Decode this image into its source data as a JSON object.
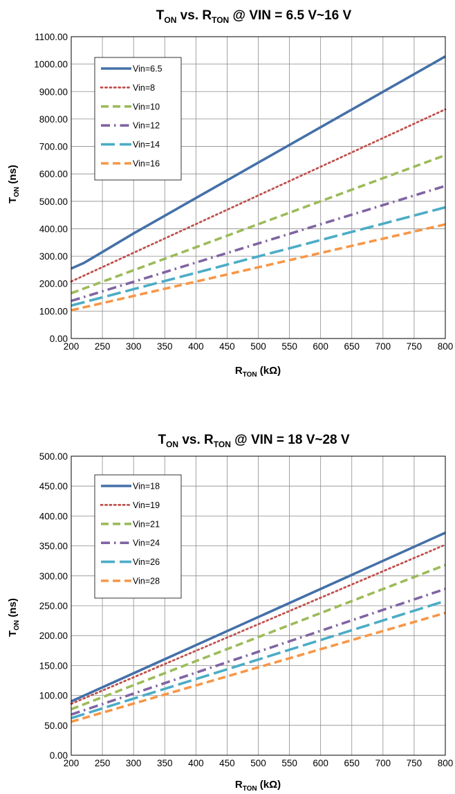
{
  "chart_data": [
    {
      "type": "line",
      "title": {
        "main_t": "T",
        "sub_t": "ON",
        "mid": " vs. R",
        "sub_r": "TON",
        "tail": " @ VIN = 6.5 V~16 V"
      },
      "xlabel": {
        "main": "R",
        "sub": "TON",
        "tail": " (kΩ)"
      },
      "ylabel": {
        "main": "T",
        "sub": "ON",
        "tail": " (ns)"
      },
      "xlim": [
        200,
        800
      ],
      "ylim": [
        0,
        1100
      ],
      "xticks": [
        200,
        250,
        300,
        350,
        400,
        450,
        500,
        550,
        600,
        650,
        700,
        750,
        800
      ],
      "xtick_labels": [
        "200",
        "250",
        "300",
        "350",
        "400",
        "450",
        "500",
        "550",
        "600",
        "650",
        "700",
        "750",
        "800"
      ],
      "yticks": [
        0,
        100,
        200,
        300,
        400,
        500,
        600,
        700,
        800,
        900,
        1000,
        1100
      ],
      "ytick_labels": [
        "0.00",
        "100.00",
        "200.00",
        "300.00",
        "400.00",
        "500.00",
        "600.00",
        "700.00",
        "800.00",
        "900.00",
        "1000.00",
        "1100.00"
      ],
      "grid": true,
      "legend_position": "top-left",
      "series": [
        {
          "name": "Vin=6.5",
          "color": "#4470a8",
          "dash": "solid",
          "x": [
            200,
            220,
            250,
            300,
            800
          ],
          "y": [
            255,
            275,
            315,
            383,
            1028
          ]
        },
        {
          "name": "Vin=8",
          "color": "#c0504d",
          "dash": "dot",
          "x": [
            200,
            800
          ],
          "y": [
            208,
            835
          ]
        },
        {
          "name": "Vin=10",
          "color": "#9bbb59",
          "dash": "dash",
          "x": [
            200,
            800
          ],
          "y": [
            165,
            668
          ]
        },
        {
          "name": "Vin=12",
          "color": "#8064a2",
          "dash": "dashdot",
          "x": [
            200,
            800
          ],
          "y": [
            137,
            556
          ]
        },
        {
          "name": "Vin=14",
          "color": "#4bacc6",
          "dash": "longdash",
          "x": [
            200,
            800
          ],
          "y": [
            120,
            478
          ]
        },
        {
          "name": "Vin=16",
          "color": "#f79646",
          "dash": "dash",
          "x": [
            200,
            800
          ],
          "y": [
            103,
            416
          ]
        }
      ]
    },
    {
      "type": "line",
      "title": {
        "main_t": "T",
        "sub_t": "ON",
        "mid": " vs. R",
        "sub_r": "TON",
        "tail": " @ VIN = 18 V~28 V"
      },
      "xlabel": {
        "main": "R",
        "sub": "TON",
        "tail": " (kΩ)"
      },
      "ylabel": {
        "main": "T",
        "sub": "ON",
        "tail": " (ns)"
      },
      "xlim": [
        200,
        800
      ],
      "ylim": [
        0,
        500
      ],
      "xticks": [
        200,
        250,
        300,
        350,
        400,
        450,
        500,
        550,
        600,
        650,
        700,
        750,
        800
      ],
      "xtick_labels": [
        "200",
        "250",
        "300",
        "350",
        "400",
        "450",
        "500",
        "550",
        "600",
        "650",
        "700",
        "750",
        "800"
      ],
      "yticks": [
        0,
        50,
        100,
        150,
        200,
        250,
        300,
        350,
        400,
        450,
        500
      ],
      "ytick_labels": [
        "0.00",
        "50.00",
        "100.00",
        "150.00",
        "200.00",
        "250.00",
        "300.00",
        "350.00",
        "400.00",
        "450.00",
        "500.00"
      ],
      "grid": true,
      "legend_position": "top-left",
      "series": [
        {
          "name": "Vin=18",
          "color": "#4470a8",
          "dash": "solid",
          "x": [
            200,
            800
          ],
          "y": [
            90,
            372
          ]
        },
        {
          "name": "Vin=19",
          "color": "#c0504d",
          "dash": "dot",
          "x": [
            200,
            800
          ],
          "y": [
            86,
            352
          ]
        },
        {
          "name": "Vin=21",
          "color": "#9bbb59",
          "dash": "dash",
          "x": [
            200,
            800
          ],
          "y": [
            77,
            318
          ]
        },
        {
          "name": "Vin=24",
          "color": "#8064a2",
          "dash": "dashdot",
          "x": [
            200,
            800
          ],
          "y": [
            68,
            278
          ]
        },
        {
          "name": "Vin=26",
          "color": "#4bacc6",
          "dash": "longdash",
          "x": [
            200,
            800
          ],
          "y": [
            62,
            258
          ]
        },
        {
          "name": "Vin=28",
          "color": "#f79646",
          "dash": "dash",
          "x": [
            200,
            800
          ],
          "y": [
            56,
            238
          ]
        }
      ]
    }
  ]
}
